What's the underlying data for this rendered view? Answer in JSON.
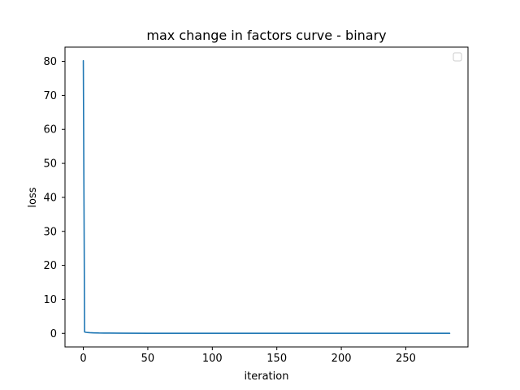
{
  "chart_data": {
    "type": "line",
    "title": "max change in factors curve - binary",
    "xlabel": "iteration",
    "ylabel": "loss",
    "xlim": [
      -14.2,
      298.2
    ],
    "ylim": [
      -4.0,
      84.2
    ],
    "xticks": [
      0,
      50,
      100,
      150,
      200,
      250
    ],
    "yticks": [
      0,
      10,
      20,
      30,
      40,
      50,
      60,
      70,
      80
    ],
    "grid": false,
    "legend": {
      "placement": "top-right",
      "entries": []
    },
    "series": [
      {
        "color": "#1f77b4",
        "x": [
          0,
          1,
          2,
          3,
          5,
          8,
          12,
          20,
          30,
          50,
          100,
          150,
          200,
          250,
          284
        ],
        "y": [
          80.2,
          0.4,
          0.3,
          0.25,
          0.2,
          0.15,
          0.1,
          0.07,
          0.05,
          0.03,
          0.02,
          0.01,
          0.01,
          0.01,
          0.01
        ]
      }
    ]
  }
}
